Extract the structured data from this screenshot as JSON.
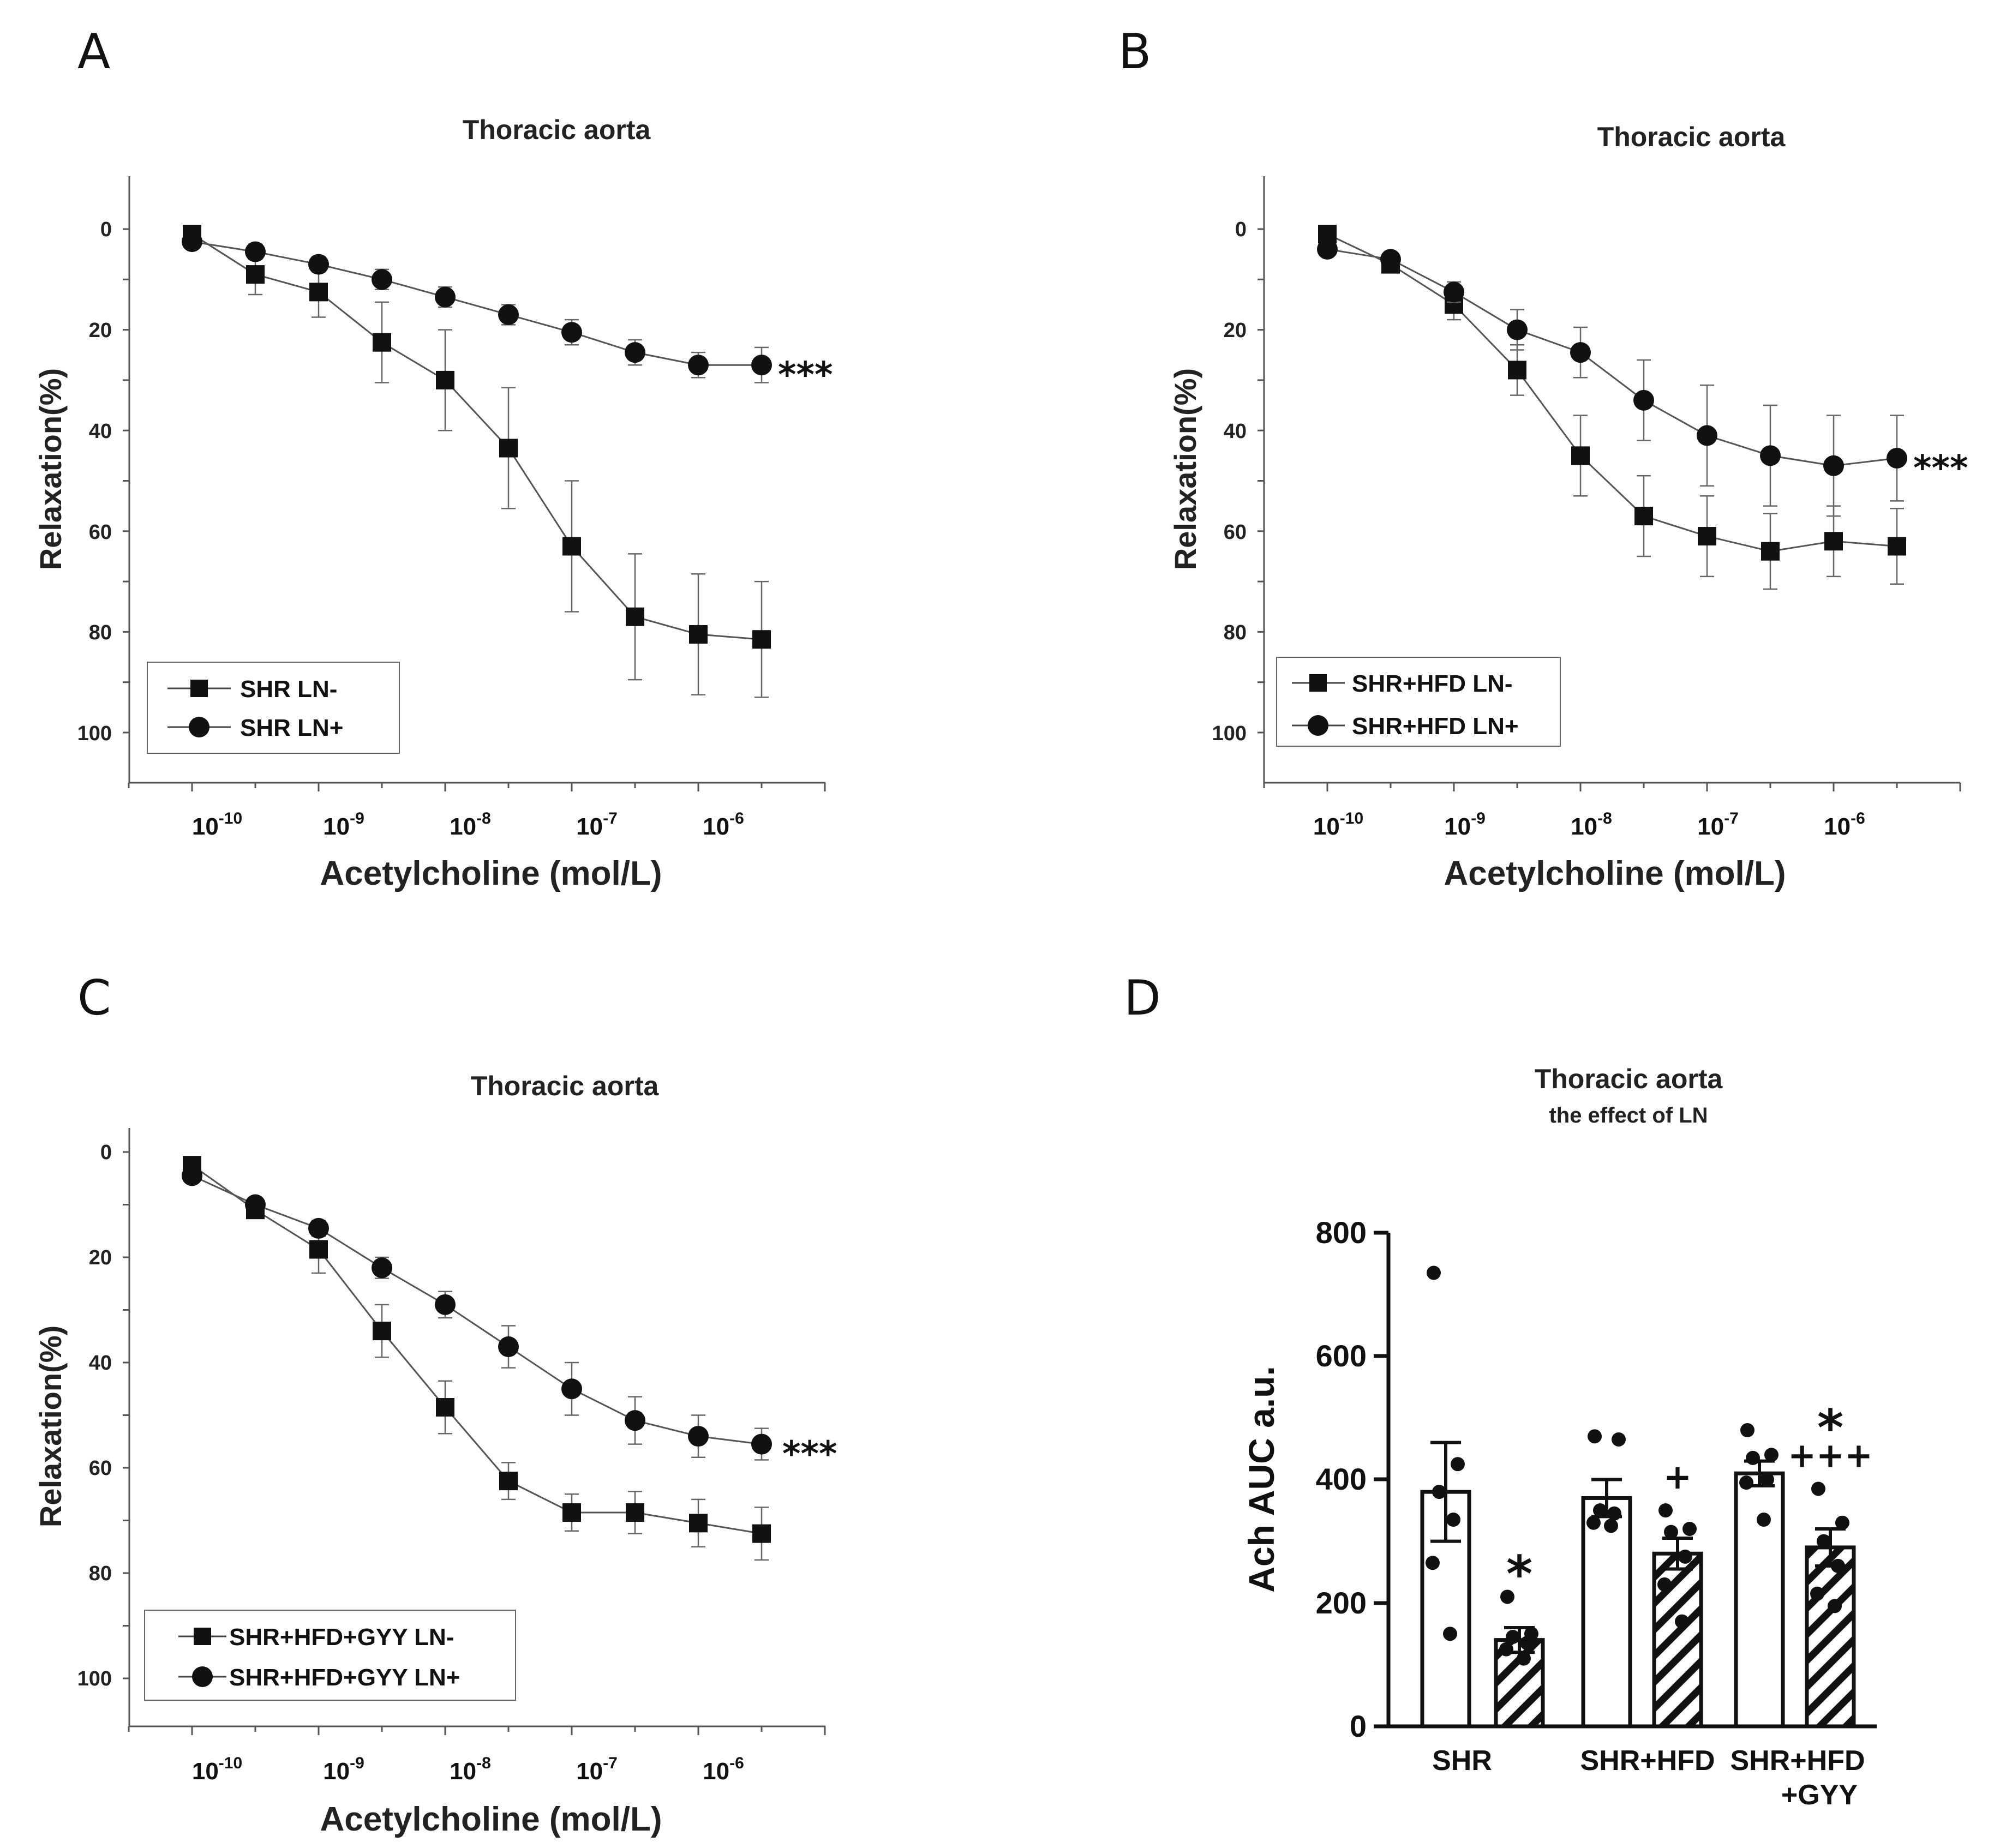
{
  "panel_labels": [
    "A",
    "B",
    "C",
    "D"
  ],
  "chart_data": [
    {
      "panel": "A",
      "type": "line",
      "title": "Thoracic aorta",
      "ylabel": "Relaxation(%)",
      "xlabel": "Acetylcholine (mol/L)",
      "x_scale": "log",
      "x_log10_conc": [
        -10,
        -9.5,
        -9,
        -8.5,
        -8,
        -7.5,
        -7,
        -6.5,
        -6,
        -5.5
      ],
      "xtick_exponents": [
        "-10",
        "-9",
        "-8",
        "-7",
        "-6"
      ],
      "xtick_base": "10",
      "ylim": [
        -10,
        110
      ],
      "y_inverted": true,
      "yticks": [
        "0",
        "20",
        "40",
        "60",
        "80",
        "100"
      ],
      "significance": "***",
      "significance_series": 1,
      "series": [
        {
          "name": "SHR LN-",
          "marker": "square",
          "values": [
            1,
            9,
            12.5,
            22.5,
            30,
            43.5,
            63,
            77,
            80.5,
            81.5
          ],
          "errors": [
            1,
            4,
            5,
            8,
            10,
            12,
            13,
            12.5,
            12,
            11.5
          ]
        },
        {
          "name": "SHR LN+",
          "marker": "circle",
          "values": [
            2.5,
            4.5,
            7,
            10,
            13.5,
            17,
            20.5,
            24.5,
            27,
            27
          ],
          "errors": [
            0.5,
            1.5,
            1.5,
            2,
            2,
            2,
            2.5,
            2.5,
            2.5,
            3.5
          ]
        }
      ]
    },
    {
      "panel": "B",
      "type": "line",
      "title": "Thoracic aorta",
      "ylabel": "Relaxation(%)",
      "xlabel": "Acetylcholine (mol/L)",
      "x_scale": "log",
      "x_log10_conc": [
        -10,
        -9.5,
        -9,
        -8.5,
        -8,
        -7.5,
        -7,
        -6.5,
        -6,
        -5.5
      ],
      "xtick_exponents": [
        "-10",
        "-9",
        "-8",
        "-7",
        "-6"
      ],
      "xtick_base": "10",
      "ylim": [
        -10,
        110
      ],
      "y_inverted": true,
      "yticks": [
        "0",
        "20",
        "40",
        "60",
        "80",
        "100"
      ],
      "significance": "***",
      "significance_series": 1,
      "series": [
        {
          "name": "SHR+HFD LN-",
          "marker": "square",
          "values": [
            1,
            7,
            15,
            28,
            45,
            57,
            61,
            64,
            62,
            63
          ],
          "errors": [
            1,
            1.5,
            3,
            5,
            8,
            8,
            8,
            7.5,
            7,
            7.5
          ]
        },
        {
          "name": "SHR+HFD LN+",
          "marker": "circle",
          "values": [
            4,
            6,
            12.5,
            20,
            24.5,
            34,
            41,
            45,
            47,
            45.5
          ],
          "errors": [
            0.5,
            1,
            2,
            4,
            5,
            8,
            10,
            10,
            10,
            8.5
          ]
        }
      ]
    },
    {
      "panel": "C",
      "type": "line",
      "title": "Thoracic aorta",
      "ylabel": "Relaxation(%)",
      "xlabel": "Acetylcholine (mol/L)",
      "x_scale": "log",
      "x_log10_conc": [
        -10,
        -9.5,
        -9,
        -8.5,
        -8,
        -7.5,
        -7,
        -6.5,
        -6,
        -5.5
      ],
      "xtick_exponents": [
        "-10",
        "-9",
        "-8",
        "-7",
        "-6"
      ],
      "xtick_base": "10",
      "ylim": [
        -5,
        110
      ],
      "y_inverted": true,
      "yticks": [
        "0",
        "20",
        "40",
        "60",
        "80",
        "100"
      ],
      "significance": "***",
      "significance_series": 1,
      "series": [
        {
          "name": "SHR+HFD+GYY LN-",
          "marker": "square",
          "values": [
            2.5,
            11,
            18.5,
            34,
            48.5,
            62.5,
            68.5,
            68.5,
            70.5,
            72.5
          ],
          "errors": [
            0.5,
            1,
            4.5,
            5,
            5,
            3.5,
            3.5,
            4,
            4.5,
            5
          ]
        },
        {
          "name": "SHR+HFD+GYY LN+",
          "marker": "circle",
          "values": [
            4.5,
            10,
            14.5,
            22,
            29,
            37,
            45,
            51,
            54,
            55.5
          ],
          "errors": [
            0.5,
            1,
            1.5,
            2,
            2.5,
            4,
            5,
            4.5,
            4,
            3
          ]
        }
      ]
    },
    {
      "panel": "D",
      "type": "bar",
      "title": "Thoracic aorta",
      "subtitle": "the effect of LN",
      "ylabel": "Ach AUC a.u.",
      "ylim": [
        0,
        800
      ],
      "yticks": [
        "0",
        "200",
        "400",
        "600",
        "800"
      ],
      "group_labels": [
        [
          "SHR"
        ],
        [
          "SHR+HFD"
        ],
        [
          "SHR+HFD",
          "+GYY"
        ]
      ],
      "bars": [
        {
          "group": 0,
          "condition": "LN-",
          "pattern": "open",
          "mean": 380,
          "sem": 80,
          "points": [
            735,
            425,
            380,
            335,
            265,
            150
          ],
          "annotations": []
        },
        {
          "group": 0,
          "condition": "LN+",
          "pattern": "hatched",
          "mean": 140,
          "sem": 20,
          "points": [
            210,
            150,
            145,
            135,
            125,
            110
          ],
          "annotations": [
            "*"
          ]
        },
        {
          "group": 1,
          "condition": "LN-",
          "pattern": "open",
          "mean": 370,
          "sem": 30,
          "points": [
            470,
            465,
            350,
            345,
            330,
            325
          ],
          "annotations": []
        },
        {
          "group": 1,
          "condition": "LN+",
          "pattern": "hatched",
          "mean": 280,
          "sem": 25,
          "points": [
            350,
            320,
            315,
            275,
            230,
            170
          ],
          "annotations": [
            "+"
          ]
        },
        {
          "group": 2,
          "condition": "LN-",
          "pattern": "open",
          "mean": 410,
          "sem": 20,
          "points": [
            480,
            440,
            435,
            400,
            395,
            335
          ],
          "annotations": []
        },
        {
          "group": 2,
          "condition": "LN+",
          "pattern": "hatched",
          "mean": 290,
          "sem": 30,
          "points": [
            385,
            330,
            300,
            260,
            215,
            195
          ],
          "annotations": [
            "*",
            "+++"
          ]
        }
      ]
    }
  ]
}
